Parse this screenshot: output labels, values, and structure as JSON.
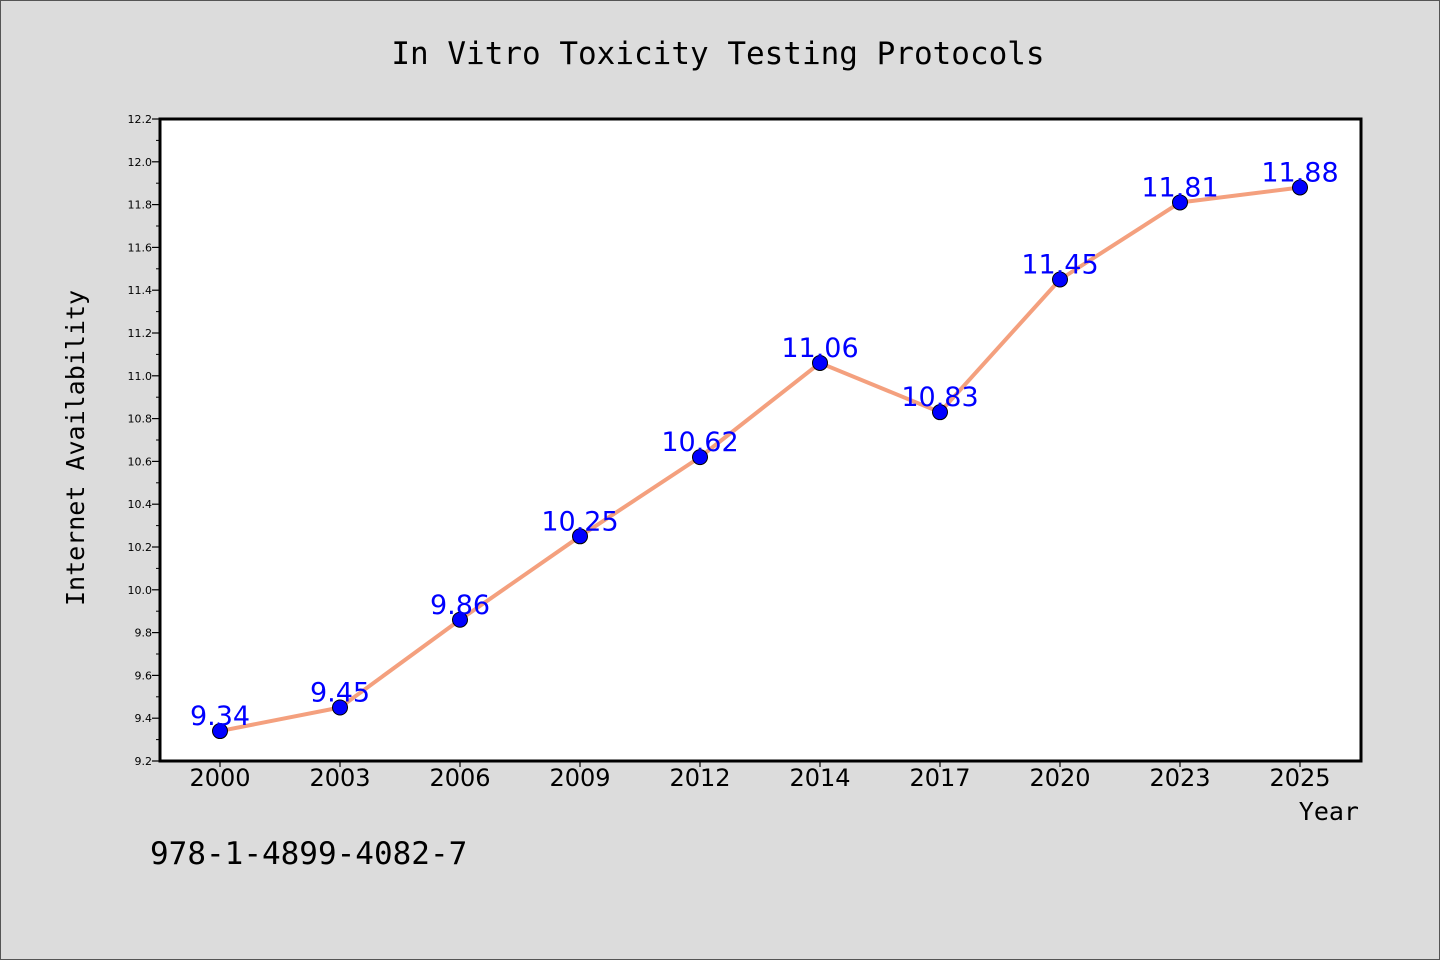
{
  "footer": {
    "code": "978-1-4899-4082-7"
  },
  "colors": {
    "background": "#dcdcdc",
    "plot_background": "#ffffff",
    "line": "#f4a07e",
    "marker": "#0000ff",
    "data_label": "#0000ff"
  },
  "chart_data": {
    "type": "line",
    "title": "In Vitro Toxicity Testing Protocols",
    "xlabel": "Year",
    "ylabel": "Internet Availability",
    "categories": [
      "2000",
      "2003",
      "2006",
      "2009",
      "2012",
      "2014",
      "2017",
      "2020",
      "2023",
      "2025"
    ],
    "series": [
      {
        "values": [
          9.34,
          9.45,
          9.86,
          10.25,
          10.62,
          11.06,
          10.83,
          11.45,
          11.81,
          11.88
        ],
        "data_labels": [
          "9.34",
          "9.45",
          "9.86",
          "10.25",
          "10.62",
          "11.06",
          "10.83",
          "11.45",
          "11.81",
          "11.88"
        ]
      }
    ],
    "ylim": [
      9.2,
      12.2
    ],
    "yticks": [
      "9.2",
      "9.4",
      "9.6",
      "9.8",
      "10.0",
      "10.2",
      "10.4",
      "10.6",
      "10.8",
      "11.0",
      "11.2",
      "11.4",
      "11.6",
      "11.8",
      "12.0",
      "12.2"
    ],
    "grid": false,
    "legend": "none"
  }
}
